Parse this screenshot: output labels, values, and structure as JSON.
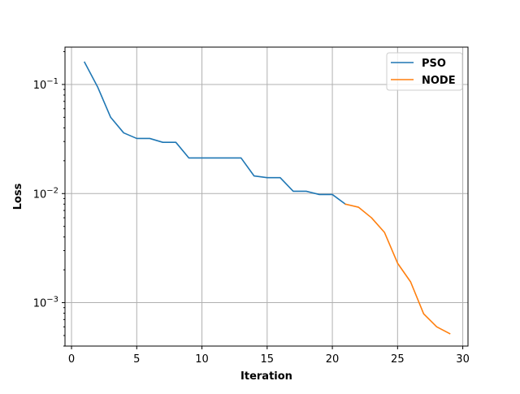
{
  "chart_data": {
    "type": "line",
    "xlabel": "Iteration",
    "ylabel": "Loss",
    "xlim": [
      -0.5,
      30.4
    ],
    "ylim": [
      0.0004,
      0.22
    ],
    "yscale": "log",
    "grid": true,
    "legend_position": "top-right",
    "x_ticks": [
      {
        "value": 0,
        "label": "0"
      },
      {
        "value": 5,
        "label": "5"
      },
      {
        "value": 10,
        "label": "10"
      },
      {
        "value": 15,
        "label": "15"
      },
      {
        "value": 20,
        "label": "20"
      },
      {
        "value": 25,
        "label": "25"
      },
      {
        "value": 30,
        "label": "30"
      }
    ],
    "y_ticks": [
      {
        "value": 0.1,
        "base": "10",
        "exponent": "−1"
      },
      {
        "value": 0.01,
        "base": "10",
        "exponent": "−2"
      },
      {
        "value": 0.001,
        "base": "10",
        "exponent": "−3"
      }
    ],
    "series": [
      {
        "name": "PSO",
        "color": "#1f77b4",
        "x": [
          1,
          2,
          3,
          4,
          5,
          6,
          7,
          8,
          9,
          10,
          11,
          12,
          13,
          14,
          15,
          16,
          17,
          18,
          19,
          20,
          21
        ],
        "y": [
          0.16,
          0.095,
          0.05,
          0.036,
          0.032,
          0.032,
          0.0295,
          0.0295,
          0.0212,
          0.0212,
          0.0212,
          0.0212,
          0.0212,
          0.0145,
          0.014,
          0.014,
          0.0105,
          0.0105,
          0.0098,
          0.0098,
          0.008
        ]
      },
      {
        "name": "NODE",
        "color": "#ff7f0e",
        "x": [
          21,
          22,
          23,
          24,
          25,
          26,
          27,
          28,
          29
        ],
        "y": [
          0.008,
          0.0075,
          0.006,
          0.0044,
          0.0023,
          0.00155,
          0.00079,
          0.0006,
          0.00052
        ]
      }
    ]
  }
}
